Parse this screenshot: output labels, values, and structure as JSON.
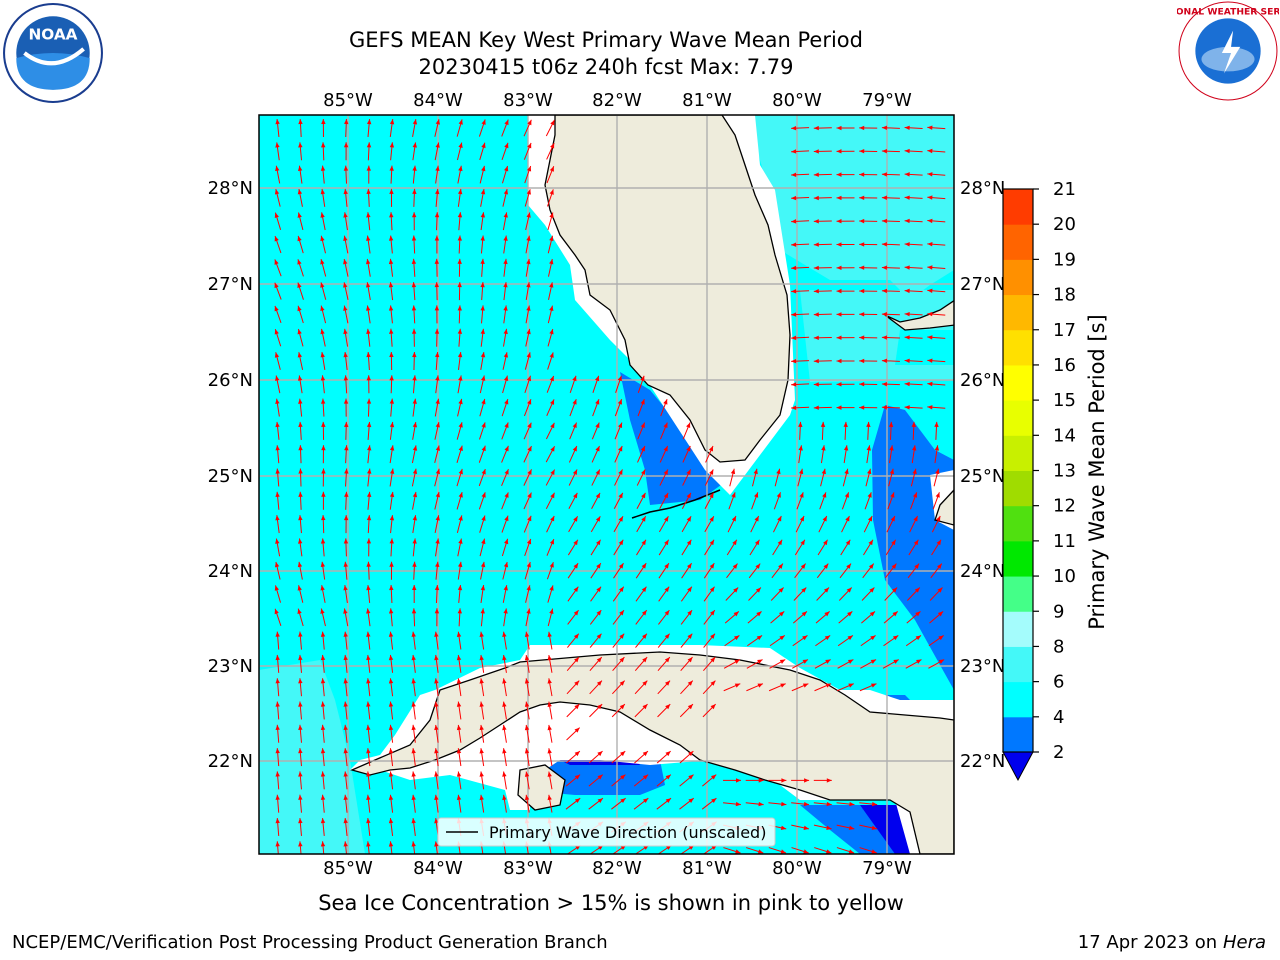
{
  "header": {
    "title_line1": "GEFS MEAN Key West Primary Wave Mean Period",
    "title_line2": "20230415 t06z 240h fcst   Max: 7.79"
  },
  "logos": {
    "left": {
      "icon": "noaa-logo",
      "text": "NOAA"
    },
    "right": {
      "icon": "national-weather-service-logo",
      "text": "NATIONAL WEATHER SERVICE"
    }
  },
  "map": {
    "lon_labels": [
      "85°W",
      "84°W",
      "83°W",
      "82°W",
      "81°W",
      "80°W",
      "79°W"
    ],
    "lat_labels": [
      "28°N",
      "27°N",
      "26°N",
      "25°N",
      "24°N",
      "23°N",
      "22°N"
    ],
    "legend_label": "Primary Wave Direction (unscaled)",
    "colors": {
      "land": "#eeecdc",
      "arrow": "#ff0000",
      "grid": "#b0b0b0"
    }
  },
  "colorbar": {
    "label": "Primary Wave Mean Period [s]",
    "ticks": [
      "2",
      "4",
      "6",
      "8",
      "9",
      "10",
      "11",
      "12",
      "13",
      "14",
      "15",
      "16",
      "17",
      "18",
      "19",
      "20",
      "21"
    ],
    "colors": [
      "#0078ff",
      "#00ffff",
      "#44f8f8",
      "#a4fcfc",
      "#44ff88",
      "#00e800",
      "#50e010",
      "#a0dc00",
      "#c8f000",
      "#e8ff00",
      "#ffff00",
      "#ffe000",
      "#ffb800",
      "#ff9000",
      "#ff6400",
      "#ff3c00",
      "#ff0000"
    ],
    "extend_color": "#0000ee"
  },
  "caption": "Sea Ice Concentration > 15% is shown in pink to yellow",
  "footer": {
    "left": "NCEP/EMC/Verification Post Processing Product Generation Branch",
    "right_date": "17 Apr 2023 on ",
    "right_host": "Hera"
  }
}
